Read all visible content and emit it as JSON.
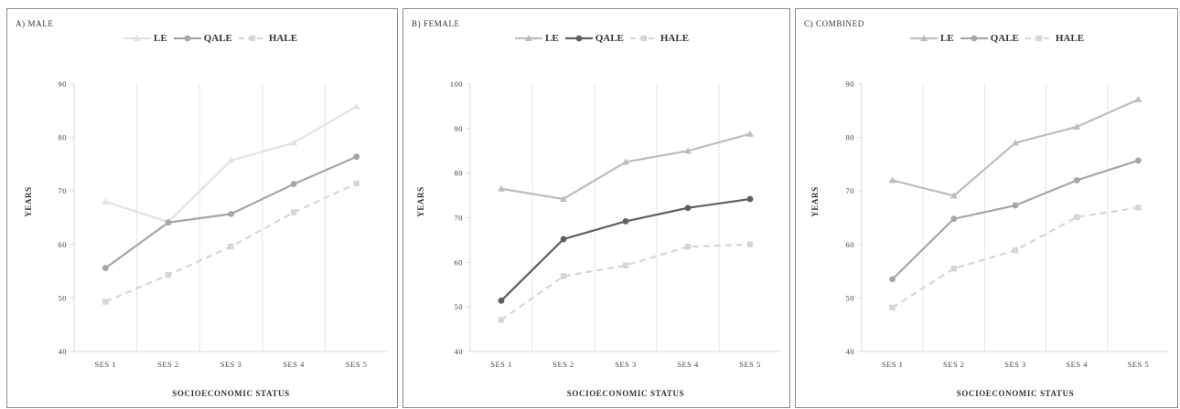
{
  "chart_data": [
    {
      "type": "line",
      "title": "A) MALE",
      "xlabel": "SOCIOECONOMIC STATUS",
      "ylabel": "YEARS",
      "categories": [
        "SES 1",
        "SES 2",
        "SES 3",
        "SES 4",
        "SES 5"
      ],
      "ylim": [
        40,
        90
      ],
      "yticks": [
        "40",
        "50",
        "60",
        "70",
        "80",
        "90"
      ],
      "legend_position": "top",
      "series": [
        {
          "name": "LE",
          "values": [
            68.0,
            64.2,
            75.7,
            79.0,
            85.8
          ],
          "color": "#e3e3e3",
          "marker": "triangle",
          "dash": false
        },
        {
          "name": "QALE",
          "values": [
            55.6,
            64.1,
            65.7,
            71.3,
            76.4
          ],
          "color": "#a6a6a6",
          "marker": "circle",
          "dash": false
        },
        {
          "name": "HALE",
          "values": [
            49.3,
            54.3,
            59.6,
            66.0,
            71.4
          ],
          "color": "#d6d6d6",
          "marker": "square",
          "dash": true
        }
      ]
    },
    {
      "type": "line",
      "title": "B) FEMALE",
      "xlabel": "SOCIOECONOMIC STATUS",
      "ylabel": "YEARS",
      "categories": [
        "SES 1",
        "SES 2",
        "SES 3",
        "SES 4",
        "SES 5"
      ],
      "ylim": [
        40,
        100
      ],
      "yticks": [
        "40",
        "50",
        "60",
        "70",
        "80",
        "90",
        "100"
      ],
      "legend_position": "top",
      "series": [
        {
          "name": "LE",
          "values": [
            76.5,
            74.2,
            82.5,
            85.0,
            88.8
          ],
          "color": "#bdbdbd",
          "marker": "triangle",
          "dash": false
        },
        {
          "name": "QALE",
          "values": [
            51.4,
            65.2,
            69.2,
            72.2,
            74.2
          ],
          "color": "#606060",
          "marker": "circle",
          "dash": false
        },
        {
          "name": "HALE",
          "values": [
            47.1,
            56.9,
            59.3,
            63.5,
            64.0
          ],
          "color": "#d6d6d6",
          "marker": "square",
          "dash": true
        }
      ]
    },
    {
      "type": "line",
      "title": "C) COMBINED",
      "xlabel": "SOCIOECONOMIC STATUS",
      "ylabel": "YEARS",
      "categories": [
        "SES 1",
        "SES 2",
        "SES 3",
        "SES 4",
        "SES 5"
      ],
      "ylim": [
        40,
        90
      ],
      "yticks": [
        "40",
        "50",
        "60",
        "70",
        "80",
        "90"
      ],
      "legend_position": "top",
      "series": [
        {
          "name": "LE",
          "values": [
            72.0,
            69.1,
            79.0,
            82.0,
            87.1
          ],
          "color": "#bdbdbd",
          "marker": "triangle",
          "dash": false
        },
        {
          "name": "QALE",
          "values": [
            53.5,
            64.8,
            67.3,
            72.0,
            75.7
          ],
          "color": "#a6a6a6",
          "marker": "circle",
          "dash": false
        },
        {
          "name": "HALE",
          "values": [
            48.2,
            55.5,
            58.9,
            65.1,
            66.9
          ],
          "color": "#d6d6d6",
          "marker": "square",
          "dash": true
        }
      ]
    }
  ]
}
